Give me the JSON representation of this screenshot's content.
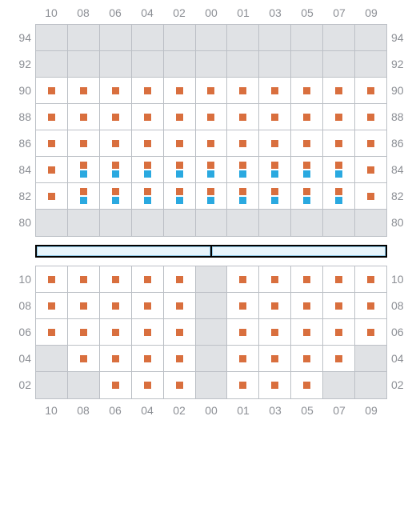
{
  "colors": {
    "orange": "#d96f3e",
    "blue": "#2aa9e0",
    "shaded": "#e0e2e5",
    "white": "#ffffff",
    "border": "#bcc0c6",
    "label": "#8b8e94",
    "divider_bg": "#000000",
    "divider_seg_fill": "#e8f5fc",
    "divider_seg_border": "#8fc9e8"
  },
  "columns": [
    "10",
    "08",
    "06",
    "04",
    "02",
    "00",
    "01",
    "03",
    "05",
    "07",
    "09"
  ],
  "top": {
    "row_labels": [
      "94",
      "92",
      "90",
      "88",
      "86",
      "84",
      "82",
      "80"
    ],
    "rows": [
      {
        "cells": [
          {
            "s": true
          },
          {
            "s": true
          },
          {
            "s": true
          },
          {
            "s": true
          },
          {
            "s": true
          },
          {
            "s": true
          },
          {
            "s": true
          },
          {
            "s": true
          },
          {
            "s": true
          },
          {
            "s": true
          },
          {
            "s": true
          }
        ]
      },
      {
        "cells": [
          {
            "s": true
          },
          {
            "s": true
          },
          {
            "s": true
          },
          {
            "s": true
          },
          {
            "s": true
          },
          {
            "s": true
          },
          {
            "s": true
          },
          {
            "s": true
          },
          {
            "s": true
          },
          {
            "s": true
          },
          {
            "s": true
          }
        ]
      },
      {
        "cells": [
          {
            "m": [
              "o"
            ]
          },
          {
            "m": [
              "o"
            ]
          },
          {
            "m": [
              "o"
            ]
          },
          {
            "m": [
              "o"
            ]
          },
          {
            "m": [
              "o"
            ]
          },
          {
            "m": [
              "o"
            ]
          },
          {
            "m": [
              "o"
            ]
          },
          {
            "m": [
              "o"
            ]
          },
          {
            "m": [
              "o"
            ]
          },
          {
            "m": [
              "o"
            ]
          },
          {
            "m": [
              "o"
            ]
          }
        ]
      },
      {
        "cells": [
          {
            "m": [
              "o"
            ]
          },
          {
            "m": [
              "o"
            ]
          },
          {
            "m": [
              "o"
            ]
          },
          {
            "m": [
              "o"
            ]
          },
          {
            "m": [
              "o"
            ]
          },
          {
            "m": [
              "o"
            ]
          },
          {
            "m": [
              "o"
            ]
          },
          {
            "m": [
              "o"
            ]
          },
          {
            "m": [
              "o"
            ]
          },
          {
            "m": [
              "o"
            ]
          },
          {
            "m": [
              "o"
            ]
          }
        ]
      },
      {
        "cells": [
          {
            "m": [
              "o"
            ]
          },
          {
            "m": [
              "o"
            ]
          },
          {
            "m": [
              "o"
            ]
          },
          {
            "m": [
              "o"
            ]
          },
          {
            "m": [
              "o"
            ]
          },
          {
            "m": [
              "o"
            ]
          },
          {
            "m": [
              "o"
            ]
          },
          {
            "m": [
              "o"
            ]
          },
          {
            "m": [
              "o"
            ]
          },
          {
            "m": [
              "o"
            ]
          },
          {
            "m": [
              "o"
            ]
          }
        ]
      },
      {
        "cells": [
          {
            "m": [
              "o"
            ]
          },
          {
            "m": [
              "o",
              "b"
            ]
          },
          {
            "m": [
              "o",
              "b"
            ]
          },
          {
            "m": [
              "o",
              "b"
            ]
          },
          {
            "m": [
              "o",
              "b"
            ]
          },
          {
            "m": [
              "o",
              "b"
            ]
          },
          {
            "m": [
              "o",
              "b"
            ]
          },
          {
            "m": [
              "o",
              "b"
            ]
          },
          {
            "m": [
              "o",
              "b"
            ]
          },
          {
            "m": [
              "o",
              "b"
            ]
          },
          {
            "m": [
              "o"
            ]
          }
        ]
      },
      {
        "cells": [
          {
            "m": [
              "o"
            ]
          },
          {
            "m": [
              "o",
              "b"
            ]
          },
          {
            "m": [
              "o",
              "b"
            ]
          },
          {
            "m": [
              "o",
              "b"
            ]
          },
          {
            "m": [
              "o",
              "b"
            ]
          },
          {
            "m": [
              "o",
              "b"
            ]
          },
          {
            "m": [
              "o",
              "b"
            ]
          },
          {
            "m": [
              "o",
              "b"
            ]
          },
          {
            "m": [
              "o",
              "b"
            ]
          },
          {
            "m": [
              "o",
              "b"
            ]
          },
          {
            "m": [
              "o"
            ]
          }
        ]
      },
      {
        "cells": [
          {
            "s": true
          },
          {
            "s": true
          },
          {
            "s": true
          },
          {
            "s": true
          },
          {
            "s": true
          },
          {
            "s": true
          },
          {
            "s": true
          },
          {
            "s": true
          },
          {
            "s": true
          },
          {
            "s": true
          },
          {
            "s": true
          }
        ]
      }
    ]
  },
  "bottom": {
    "row_labels": [
      "10",
      "08",
      "06",
      "04",
      "02"
    ],
    "rows": [
      {
        "cells": [
          {
            "m": [
              "o"
            ]
          },
          {
            "m": [
              "o"
            ]
          },
          {
            "m": [
              "o"
            ]
          },
          {
            "m": [
              "o"
            ]
          },
          {
            "m": [
              "o"
            ]
          },
          {
            "s": true
          },
          {
            "m": [
              "o"
            ]
          },
          {
            "m": [
              "o"
            ]
          },
          {
            "m": [
              "o"
            ]
          },
          {
            "m": [
              "o"
            ]
          },
          {
            "m": [
              "o"
            ]
          }
        ]
      },
      {
        "cells": [
          {
            "m": [
              "o"
            ]
          },
          {
            "m": [
              "o"
            ]
          },
          {
            "m": [
              "o"
            ]
          },
          {
            "m": [
              "o"
            ]
          },
          {
            "m": [
              "o"
            ]
          },
          {
            "s": true
          },
          {
            "m": [
              "o"
            ]
          },
          {
            "m": [
              "o"
            ]
          },
          {
            "m": [
              "o"
            ]
          },
          {
            "m": [
              "o"
            ]
          },
          {
            "m": [
              "o"
            ]
          }
        ]
      },
      {
        "cells": [
          {
            "m": [
              "o"
            ]
          },
          {
            "m": [
              "o"
            ]
          },
          {
            "m": [
              "o"
            ]
          },
          {
            "m": [
              "o"
            ]
          },
          {
            "m": [
              "o"
            ]
          },
          {
            "s": true
          },
          {
            "m": [
              "o"
            ]
          },
          {
            "m": [
              "o"
            ]
          },
          {
            "m": [
              "o"
            ]
          },
          {
            "m": [
              "o"
            ]
          },
          {
            "m": [
              "o"
            ]
          }
        ]
      },
      {
        "cells": [
          {
            "s": true
          },
          {
            "m": [
              "o"
            ]
          },
          {
            "m": [
              "o"
            ]
          },
          {
            "m": [
              "o"
            ]
          },
          {
            "m": [
              "o"
            ]
          },
          {
            "s": true
          },
          {
            "m": [
              "o"
            ]
          },
          {
            "m": [
              "o"
            ]
          },
          {
            "m": [
              "o"
            ]
          },
          {
            "m": [
              "o"
            ]
          },
          {
            "s": true
          }
        ]
      },
      {
        "cells": [
          {
            "s": true
          },
          {
            "s": true
          },
          {
            "m": [
              "o"
            ]
          },
          {
            "m": [
              "o"
            ]
          },
          {
            "m": [
              "o"
            ]
          },
          {
            "s": true
          },
          {
            "m": [
              "o"
            ]
          },
          {
            "m": [
              "o"
            ]
          },
          {
            "m": [
              "o"
            ]
          },
          {
            "s": true
          },
          {
            "s": true
          }
        ]
      }
    ]
  },
  "divider_segments": 2
}
